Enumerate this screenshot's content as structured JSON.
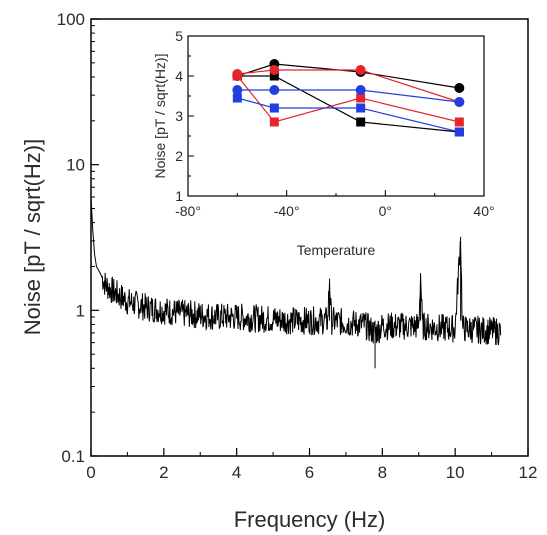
{
  "chart_data": [
    {
      "type": "line",
      "xlabel": "Frequency (Hz)",
      "ylabel": "Noise [pT / sqrt(Hz)]",
      "xlim": [
        0,
        12
      ],
      "ylim": [
        0.1,
        100
      ],
      "yscale": "log",
      "x_ticks": [
        0,
        2,
        4,
        6,
        8,
        10,
        12
      ],
      "x_tick_labels": [
        "0",
        "2",
        "4",
        "6",
        "8",
        "10",
        "12"
      ],
      "y_ticks": [
        0.1,
        1,
        10,
        100
      ],
      "y_tick_labels": [
        "0.1",
        "1",
        "10",
        "100"
      ],
      "grid": false,
      "series": [
        {
          "color": "#000000",
          "x": [
            0.0,
            0.05,
            0.1,
            0.15,
            0.2,
            0.3,
            0.4,
            0.6,
            0.8,
            1.0,
            1.5,
            2.0,
            2.5,
            3.0,
            3.5,
            4.0,
            4.5,
            5.0,
            5.5,
            6.0,
            6.5,
            6.55,
            6.6,
            7.0,
            7.5,
            7.8,
            8.0,
            8.5,
            9.0,
            9.05,
            9.1,
            9.5,
            10.0,
            10.15,
            10.2,
            10.5,
            11.0,
            11.25
          ],
          "y": [
            6.0,
            3.5,
            2.4,
            2.0,
            1.9,
            1.7,
            1.5,
            1.35,
            1.25,
            1.15,
            1.05,
            1.0,
            0.95,
            0.93,
            0.9,
            0.9,
            0.88,
            0.87,
            0.85,
            0.85,
            0.85,
            1.65,
            0.85,
            0.82,
            0.8,
            0.7,
            0.78,
            0.78,
            0.78,
            1.8,
            0.78,
            0.76,
            0.75,
            3.2,
            0.75,
            0.74,
            0.72,
            0.72
          ]
        }
      ]
    },
    {
      "type": "line",
      "xlabel": "Temperature",
      "ylabel": "Noise [pT / sqrt(Hz)]",
      "xlim": [
        -80,
        40
      ],
      "ylim": [
        1,
        5
      ],
      "x_ticks": [
        -80,
        -40,
        0,
        40
      ],
      "x_tick_labels": [
        "-80°",
        "-40°",
        "0°",
        "40°"
      ],
      "y_ticks": [
        1,
        2,
        3,
        4,
        5
      ],
      "y_tick_labels": [
        "1",
        "2",
        "3",
        "4",
        "5"
      ],
      "grid": false,
      "x": [
        -60,
        -45,
        -10,
        30
      ],
      "series": [
        {
          "color": "#000000",
          "marker": "circle",
          "values": [
            4.0,
            4.3,
            4.1,
            3.7
          ]
        },
        {
          "color": "#000000",
          "marker": "square",
          "values": [
            4.0,
            4.0,
            2.85,
            2.6
          ]
        },
        {
          "color": "#e8232a",
          "marker": "circle",
          "values": [
            4.05,
            4.15,
            4.15,
            3.35
          ]
        },
        {
          "color": "#e8232a",
          "marker": "square",
          "values": [
            4.0,
            2.85,
            3.45,
            2.85
          ]
        },
        {
          "color": "#1f3fe0",
          "marker": "circle",
          "values": [
            3.65,
            3.65,
            3.65,
            3.35
          ]
        },
        {
          "color": "#1f3fe0",
          "marker": "square",
          "values": [
            3.45,
            3.2,
            3.2,
            2.6
          ]
        }
      ]
    }
  ]
}
